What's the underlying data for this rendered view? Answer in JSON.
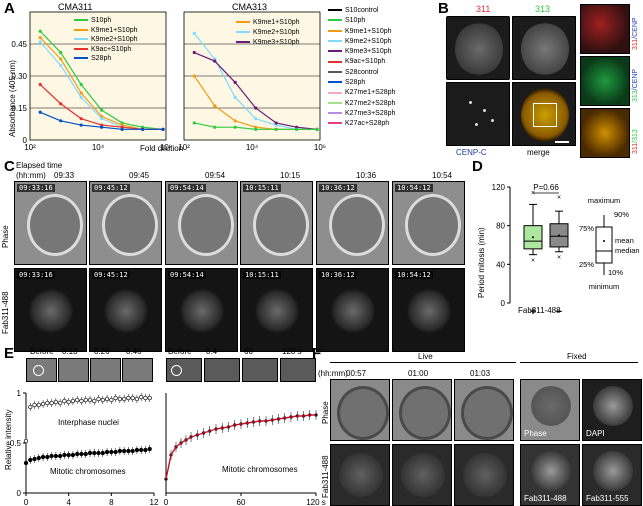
{
  "panels": {
    "A": "A",
    "B": "B",
    "C": "C",
    "D": "D",
    "E": "E",
    "F": "F"
  },
  "panelA": {
    "title_left": "CMA311",
    "title_right": "CMA313",
    "ylabel": "Absorbance (405 nm)",
    "xlabel": "Fold dilution",
    "yticks": [
      "0",
      "0.15",
      "0.30",
      "0.45"
    ],
    "xticks": [
      "10²",
      "10⁴",
      "10⁶"
    ],
    "legend_left": [
      {
        "name": "S10ph",
        "color": "#2ecc40"
      },
      {
        "name": "K9me1+S10ph",
        "color": "#f39c12"
      },
      {
        "name": "K9me2+S10ph",
        "color": "#7fdbff"
      },
      {
        "name": "K9ac+S10ph",
        "color": "#e8312f"
      },
      {
        "name": "S28ph",
        "color": "#0050c8"
      }
    ],
    "legend_right": [
      {
        "name": "K9me1+S10ph",
        "color": "#f39c12"
      },
      {
        "name": "K9me2+S10ph",
        "color": "#7fdbff"
      },
      {
        "name": "K9me3+S10ph",
        "color": "#6a1a7a"
      }
    ],
    "legend_main": [
      {
        "name": "S10control",
        "color": "#000000"
      },
      {
        "name": "S10ph",
        "color": "#2ecc40"
      },
      {
        "name": "K9me1+S10ph",
        "color": "#f39c12"
      },
      {
        "name": "K9me2+S10ph",
        "color": "#7fdbff"
      },
      {
        "name": "K9me3+S10ph",
        "color": "#6a1a7a"
      },
      {
        "name": "K9ac+S10ph",
        "color": "#e8312f"
      },
      {
        "name": "S28control",
        "color": "#5a5a5a"
      },
      {
        "name": "S28ph",
        "color": "#0050c8"
      },
      {
        "name": "K27me1+S28ph",
        "color": "#f7a8c4"
      },
      {
        "name": "K27me2+S28ph",
        "color": "#a6e08c"
      },
      {
        "name": "K27me3+S28ph",
        "color": "#b48ee0"
      },
      {
        "name": "K27ac+S28ph",
        "color": "#e64080"
      }
    ]
  },
  "chart_data": [
    {
      "type": "line",
      "title": "CMA311",
      "xlabel": "Fold dilution",
      "ylabel": "Absorbance (405 nm)",
      "xscale": "log",
      "xlim": [
        100,
        1000000
      ],
      "ylim": [
        0,
        0.6
      ],
      "x": [
        200,
        800,
        3200,
        12800,
        51200,
        204800,
        819200
      ],
      "series": [
        {
          "name": "S10ph",
          "values": [
            0.51,
            0.41,
            0.26,
            0.14,
            0.08,
            0.06,
            0.05
          ]
        },
        {
          "name": "K9me1+S10ph",
          "values": [
            0.48,
            0.38,
            0.22,
            0.11,
            0.07,
            0.05,
            0.05
          ]
        },
        {
          "name": "K9me2+S10ph",
          "values": [
            0.46,
            0.35,
            0.2,
            0.1,
            0.06,
            0.05,
            0.05
          ]
        },
        {
          "name": "K9ac+S10ph",
          "values": [
            0.26,
            0.17,
            0.1,
            0.07,
            0.06,
            0.05,
            0.05
          ]
        },
        {
          "name": "S28ph",
          "values": [
            0.13,
            0.09,
            0.07,
            0.06,
            0.05,
            0.05,
            0.05
          ]
        }
      ]
    },
    {
      "type": "line",
      "title": "CMA313",
      "xlabel": "Fold dilution",
      "xscale": "log",
      "xlim": [
        100,
        1000000
      ],
      "ylim": [
        0,
        0.6
      ],
      "x": [
        200,
        800,
        3200,
        12800,
        51200,
        204800,
        819200
      ],
      "series": [
        {
          "name": "K9me1+S10ph",
          "values": [
            0.3,
            0.16,
            0.09,
            0.06,
            0.05,
            0.05,
            0.05
          ]
        },
        {
          "name": "K9me2+S10ph",
          "values": [
            0.5,
            0.38,
            0.2,
            0.1,
            0.07,
            0.05,
            0.05
          ]
        },
        {
          "name": "K9me3+S10ph",
          "values": [
            0.41,
            0.37,
            0.27,
            0.15,
            0.08,
            0.06,
            0.05
          ]
        },
        {
          "name": "S10ph",
          "values": [
            0.08,
            0.06,
            0.06,
            0.05,
            0.05,
            0.05,
            0.05
          ]
        }
      ]
    },
    {
      "type": "box",
      "ylabel": "Period mitosis (min)",
      "xlabel": "Fab311-488",
      "categories": [
        "+",
        "−"
      ],
      "ylim": [
        0,
        120
      ],
      "yticks": [
        "0",
        "40",
        "80",
        "120"
      ],
      "annotation": "P=0.66",
      "boxes": [
        {
          "name": "+",
          "min": 45,
          "p10": 50,
          "p25": 56,
          "median": 64,
          "p75": 80,
          "p90": 102,
          "max": 115,
          "mean": 68,
          "color": "#aee8a0"
        },
        {
          "name": "−",
          "min": 48,
          "p10": 53,
          "p25": 58,
          "median": 69,
          "p75": 82,
          "p90": 95,
          "max": 110,
          "mean": 70,
          "color": "#8a8a8a"
        }
      ],
      "key_labels": {
        "maximum": "maximum",
        "p90": "90%",
        "p75": "75%",
        "mean": "mean",
        "median": "median",
        "p25": "25%",
        "p10": "10%",
        "minimum": "minimum"
      }
    },
    {
      "type": "scatter",
      "xlabel": "",
      "ylabel": "Relative intensity",
      "xlim": [
        0,
        12
      ],
      "ylim": [
        0,
        1.0
      ],
      "yticks": [
        "0",
        "0.5",
        "1"
      ],
      "xticks": [
        "0",
        "4",
        "8",
        "12"
      ],
      "series": [
        {
          "name": "Interphase nuclei",
          "x": [
            0,
            0.4,
            0.8,
            1.2,
            1.6,
            2,
            2.4,
            2.8,
            3.2,
            3.6,
            4,
            4.4,
            4.8,
            5.2,
            5.6,
            6,
            6.4,
            6.8,
            7.2,
            7.6,
            8,
            8.4,
            8.8,
            9.2,
            9.6,
            10,
            10.4,
            10.8,
            11.2,
            11.6
          ],
          "values": [
            0.52,
            0.86,
            0.88,
            0.88,
            0.89,
            0.9,
            0.9,
            0.91,
            0.9,
            0.92,
            0.91,
            0.92,
            0.93,
            0.92,
            0.93,
            0.93,
            0.92,
            0.94,
            0.93,
            0.94,
            0.93,
            0.95,
            0.94,
            0.94,
            0.95,
            0.95,
            0.94,
            0.96,
            0.95,
            0.95
          ]
        },
        {
          "name": "Mitotic chromosomes",
          "x": [
            0,
            0.4,
            0.8,
            1.2,
            1.6,
            2,
            2.4,
            2.8,
            3.2,
            3.6,
            4,
            4.4,
            4.8,
            5.2,
            5.6,
            6,
            6.4,
            6.8,
            7.2,
            7.6,
            8,
            8.4,
            8.8,
            9.2,
            9.6,
            10,
            10.4,
            10.8,
            11.2,
            11.6
          ],
          "values": [
            0.3,
            0.33,
            0.34,
            0.35,
            0.36,
            0.36,
            0.37,
            0.37,
            0.37,
            0.38,
            0.38,
            0.38,
            0.39,
            0.39,
            0.39,
            0.4,
            0.4,
            0.4,
            0.4,
            0.41,
            0.41,
            0.41,
            0.42,
            0.42,
            0.42,
            0.42,
            0.43,
            0.43,
            0.43,
            0.44
          ]
        }
      ]
    },
    {
      "type": "line",
      "xlim": [
        0,
        120
      ],
      "ylim": [
        0,
        1.0
      ],
      "xticks": [
        "0",
        "60",
        "120 s"
      ],
      "series": [
        {
          "name": "Mitotic chromosomes",
          "x": [
            0,
            4,
            8,
            12,
            16,
            20,
            25,
            30,
            35,
            40,
            45,
            50,
            55,
            60,
            65,
            70,
            75,
            80,
            85,
            90,
            95,
            100,
            105,
            110,
            115,
            120
          ],
          "values": [
            0.14,
            0.38,
            0.46,
            0.5,
            0.53,
            0.56,
            0.58,
            0.6,
            0.62,
            0.64,
            0.65,
            0.66,
            0.68,
            0.69,
            0.7,
            0.71,
            0.72,
            0.72,
            0.73,
            0.74,
            0.75,
            0.76,
            0.77,
            0.77,
            0.78,
            0.78
          ]
        }
      ]
    }
  ],
  "panelB": {
    "label_311": "311",
    "label_313": "313",
    "label_cenp": "CENP-C",
    "label_merge": "merge",
    "side1_a": "311",
    "side1_b": "/CENP",
    "side2_a": "313",
    "side2_b": "/CENP",
    "side3_a": "311",
    "side3_b": "/313"
  },
  "panelC": {
    "elapsed": "Elapsed time",
    "hhmm": "(hh:mm)",
    "times": [
      "09:33",
      "09:45",
      "09:54",
      "10:15",
      "10:36",
      "10:54"
    ],
    "stamps": [
      "09:33:16",
      "09:45:12",
      "09:54:14",
      "10:15:11",
      "10:36:12",
      "10:54:12"
    ],
    "row1": "Phase",
    "row2": "Fab311-488"
  },
  "panelE": {
    "before": "Before",
    "times_left": [
      "0.13",
      "0.26",
      "0.40"
    ],
    "times_right": [
      "0.4",
      "60",
      "128 s"
    ],
    "label_interphase": "Interphase nuclei",
    "label_mitotic": "Mitotic chromosomes",
    "label_mitotic2": "Mitotic chromosomes",
    "ylabel": "Relative intensity"
  },
  "panelF": {
    "live": "Live",
    "fixed": "Fixed",
    "hhmm": "(hh:mm)",
    "times": [
      "00:57",
      "01:00",
      "01:03"
    ],
    "row1": "Phase",
    "row2": "Fab311-488",
    "fixed_labels": [
      "Phase",
      "DAPI",
      "Fab311-488",
      "Fab311-555"
    ]
  }
}
